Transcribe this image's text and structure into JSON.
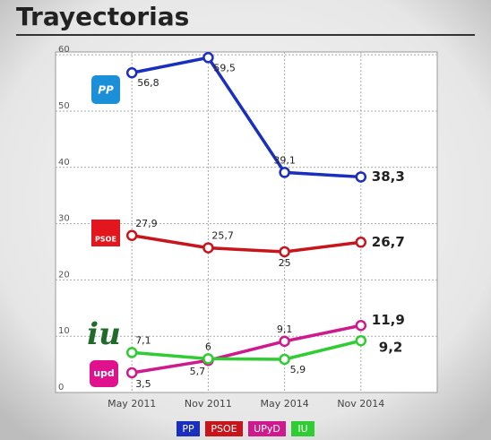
{
  "chart_data": {
    "type": "line",
    "title": "Trayectorias",
    "categories": [
      "May 2011",
      "Nov 2011",
      "May 2014",
      "Nov 2014"
    ],
    "series": [
      {
        "name": "PP",
        "color": "#1b2fbf",
        "values": [
          56.8,
          59.5,
          39.1,
          38.3
        ],
        "value_labels": [
          "56,8",
          "59,5",
          "39,1",
          "38,3"
        ]
      },
      {
        "name": "PSOE",
        "color": "#c8151b",
        "values": [
          27.9,
          25.7,
          25,
          26.7
        ],
        "value_labels": [
          "27,9",
          "25,7",
          "25",
          "26,7"
        ]
      },
      {
        "name": "UPyD",
        "color": "#cf1a8e",
        "values": [
          3.5,
          5.7,
          9.1,
          11.9
        ],
        "value_labels": [
          "3,5",
          "5,7",
          "9,1",
          "11,9"
        ]
      },
      {
        "name": "IU",
        "color": "#2fcc33",
        "values": [
          7.1,
          6,
          5.9,
          9.2
        ],
        "value_labels": [
          "7,1",
          "6",
          "5,9",
          "9,2"
        ]
      }
    ],
    "logos": [
      "PP",
      "PSOE",
      "iu",
      "upd"
    ],
    "ylim": [
      0,
      60.5
    ],
    "yticks": [
      0,
      10,
      20,
      30,
      40,
      50,
      60
    ],
    "grid": true
  }
}
